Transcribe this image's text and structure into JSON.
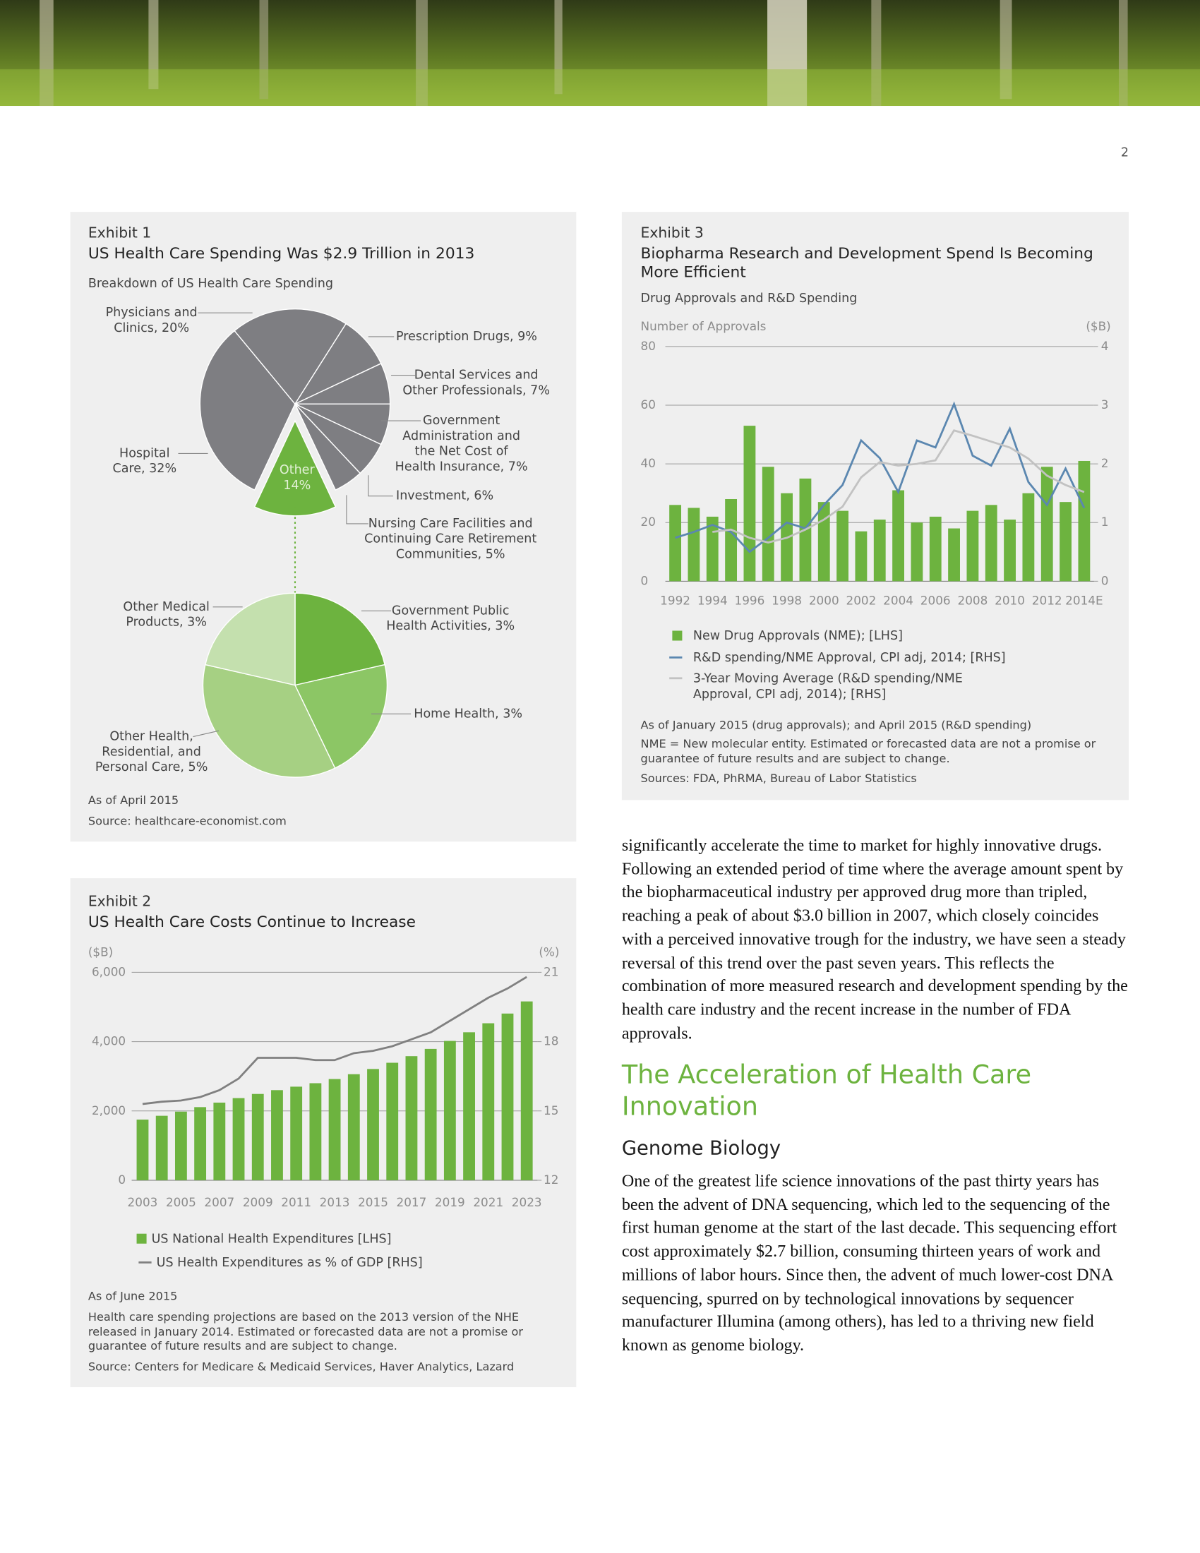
{
  "page_number": "2",
  "chart_data": [
    {
      "type": "pie_of_pie",
      "exhibit": "Exhibit 1",
      "title": "US Health Care Spending Was $2.9 Trillion in 2013",
      "subtitle": "Breakdown of US Health Care Spending",
      "categories": [
        [
          "Hospital",
          "Care, 32%"
        ],
        [
          "Physicians and",
          "Clinics, 20%"
        ],
        [
          "Prescription Drugs, 9%"
        ],
        [
          "Dental Services and",
          "Other Professionals, 7%"
        ],
        [
          "Government",
          "Administration and",
          "the Net Cost of",
          "Health Insurance, 7%"
        ],
        [
          "Investment, 6%"
        ],
        [
          "Nursing Care Facilities and",
          "Continuing Care Retirement",
          "Communities, 5%"
        ],
        [
          "Other",
          "14%"
        ]
      ],
      "values": [
        32,
        20,
        9,
        7,
        7,
        6,
        5,
        14
      ],
      "colors": [
        "#7e7e82",
        "#7e7e82",
        "#7e7e82",
        "#7e7e82",
        "#7e7e82",
        "#7e7e82",
        "#7e7e82",
        "#6db33f"
      ],
      "sub_categories": [
        [
          "Government Public",
          "Health Activities, 3%"
        ],
        [
          "Home Health, 3%"
        ],
        [
          "Other Health,",
          "Residential, and",
          "Personal Care, 5%"
        ],
        [
          "Other Medical",
          "Products, 3%"
        ]
      ],
      "sub_values": [
        3,
        3,
        5,
        3
      ],
      "sub_colors": [
        "#6db33f",
        "#8cc665",
        "#a6d083",
        "#c4e0ae"
      ],
      "notes": [
        "As of April 2015",
        "Source: healthcare-economist.com"
      ]
    },
    {
      "type": "bar_line",
      "exhibit": "Exhibit 2",
      "title": "US Health Care Costs Continue to Increase",
      "y_label": "($B)",
      "y2_label": "(%)",
      "categories": [
        "2003",
        null,
        "2005",
        null,
        "2007",
        null,
        "2009",
        null,
        "2011",
        null,
        "2013",
        null,
        "2015",
        null,
        "2017",
        null,
        "2019",
        null,
        "2021",
        null,
        "2023"
      ],
      "series": [
        {
          "name": "US National Health Expenditures [LHS]",
          "type": "bar",
          "color": "#6db33f",
          "values": [
            1750,
            1860,
            1980,
            2110,
            2240,
            2370,
            2490,
            2600,
            2700,
            2800,
            2920,
            3060,
            3210,
            3390,
            3580,
            3790,
            4020,
            4270,
            4530,
            4810,
            5160
          ]
        },
        {
          "name": "US Health Expenditures as % of GDP [RHS]",
          "type": "line",
          "axis": "y2",
          "color": "#808080",
          "values": [
            15.3,
            15.4,
            15.45,
            15.6,
            15.9,
            16.4,
            17.3,
            17.3,
            17.3,
            17.2,
            17.2,
            17.5,
            17.6,
            17.8,
            18.1,
            18.4,
            18.9,
            19.4,
            19.9,
            20.3,
            20.8
          ]
        }
      ],
      "ylim": [
        0,
        6000
      ],
      "yticks": [
        0,
        {
          "value": 2000,
          "label": "2,000"
        },
        {
          "value": 4000,
          "label": "4,000"
        },
        {
          "value": 6000,
          "label": "6,000"
        }
      ],
      "y2lim": [
        12,
        21
      ],
      "y2ticks": [
        12,
        15,
        18,
        21
      ],
      "grid": true,
      "notes": [
        "As of June 2015",
        "Health care spending projections are based on the 2013 version of the NHE released in January 2014. Estimated or forecasted data are not a promise or guarantee of future results and are subject to change.",
        "Source: Centers for Medicare & Medicaid Services, Haver Analytics, Lazard"
      ]
    },
    {
      "type": "bar_line",
      "exhibit": "Exhibit 3",
      "title": "Biopharma Research and Development Spend Is Becoming More Efficient",
      "subtitle": "Drug Approvals and R&D Spending",
      "y_label": "Number of Approvals",
      "y2_label": "($B)",
      "categories": [
        "1992",
        null,
        "1994",
        null,
        "1996",
        null,
        "1998",
        null,
        "2000",
        null,
        "2002",
        null,
        "2004",
        null,
        "2006",
        null,
        "2008",
        null,
        "2010",
        null,
        "2012",
        null,
        "2014E"
      ],
      "series": [
        {
          "name": "New Drug Approvals (NME); [LHS]",
          "type": "bar",
          "color": "#6db33f",
          "values": [
            26,
            25,
            22,
            28,
            53,
            39,
            30,
            35,
            27,
            24,
            17,
            21,
            31,
            20,
            22,
            18,
            24,
            26,
            21,
            30,
            39,
            27,
            41
          ]
        },
        {
          "name": "R&D spending/NME Approval, CPI adj, 2014; [RHS]",
          "type": "line",
          "axis": "y2",
          "color": "#5b87b0",
          "values": [
            0.74,
            0.84,
            0.96,
            0.84,
            0.5,
            0.74,
            1.0,
            0.9,
            1.3,
            1.64,
            2.4,
            2.1,
            1.52,
            2.4,
            2.28,
            3.02,
            2.14,
            1.97,
            2.6,
            1.69,
            1.3,
            1.92,
            1.25
          ]
        },
        {
          "name": "3-Year Moving Average (R&D spending/NME Approval, CPI adj, 2014); [RHS]",
          "type": "line",
          "axis": "y2",
          "color": "#c2c2c2",
          "values": [
            null,
            null,
            0.84,
            0.88,
            0.74,
            0.66,
            0.74,
            0.88,
            1.05,
            1.27,
            1.77,
            2.03,
            1.97,
            2.0,
            2.06,
            2.57,
            2.48,
            2.38,
            2.28,
            2.09,
            1.8,
            1.64,
            1.52
          ]
        }
      ],
      "ylim": [
        0,
        80
      ],
      "yticks": [
        0,
        20,
        40,
        60,
        80
      ],
      "y2lim": [
        0,
        4
      ],
      "y2ticks": [
        0,
        1,
        2,
        3,
        4
      ],
      "grid": true,
      "notes": [
        "As of January 2015 (drug approvals); and April 2015 (R&D spending)",
        "NME = New molecular entity. Estimated or forecasted data are not a promise or guarantee of future results and are subject to change.",
        "Sources: FDA, PhRMA, Bureau of Labor Statistics"
      ]
    }
  ],
  "body": {
    "paragraph_1": "significantly accelerate the time to market for highly innovative drugs. Following an extended period of time where the average amount spent by the biopharmaceutical industry per approved drug more than tripled, reaching a peak of about $3.0 billion in 2007, which closely coincides with a perceived innovative trough for the industry, we have seen a steady reversal of this trend over the past seven years. This reflects the combination of more measured research and development spending by the health care industry and the recent increase in the number of FDA approvals.",
    "heading": "The Acceleration of Health Care Innovation",
    "subheading": "Genome Biology",
    "paragraph_2": "One of the greatest life science innovations of the past thirty years has been the advent of DNA sequencing, which led to the sequencing of the first human genome at the start of the last decade. This sequencing effort cost approximately $2.7 billion, consuming thirteen years of work and millions of labor hours. Since then, the advent of much lower-cost DNA sequencing, spurred on by technological innovations by sequencer manufacturer Illumina (among others), has led to a thriving new field known as genome biology."
  }
}
